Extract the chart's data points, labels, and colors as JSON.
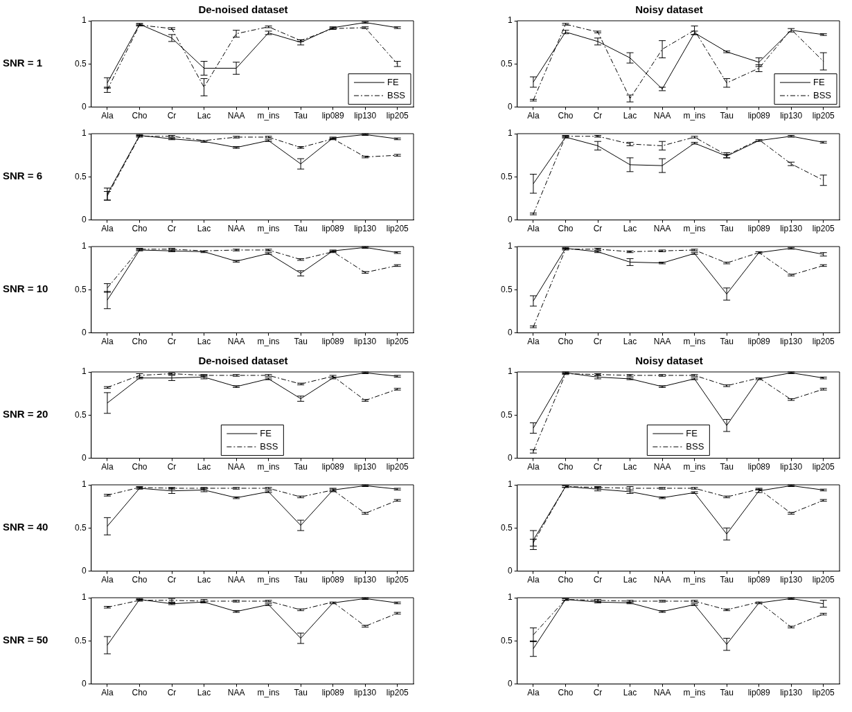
{
  "chart_data": [
    {
      "type": "line",
      "title": "De-noised dataset",
      "ylabel": "SNR = 1",
      "categories": [
        "Ala",
        "Cho",
        "Cr",
        "Lac",
        "NAA",
        "m_ins",
        "Tau",
        "lip089",
        "lip130",
        "lip205"
      ],
      "ylim": [
        0,
        1
      ],
      "yticks": [
        0,
        0.5,
        1
      ],
      "legend": "bottom right",
      "series": [
        {
          "name": "FE",
          "color": "#000000",
          "line_style": "solid",
          "values": [
            0.28,
            0.96,
            0.8,
            0.45,
            0.45,
            0.86,
            0.75,
            0.92,
            0.98,
            0.92
          ],
          "errors": [
            0.06,
            0.01,
            0.04,
            0.08,
            0.07,
            0.02,
            0.03,
            0.01,
            0.01,
            0.01
          ]
        },
        {
          "name": "BSS",
          "color": "#000000",
          "line_style": "dashdot",
          "values": [
            0.2,
            0.95,
            0.91,
            0.23,
            0.85,
            0.93,
            0.77,
            0.91,
            0.92,
            0.5
          ],
          "errors": [
            0.03,
            0.01,
            0.01,
            0.1,
            0.04,
            0.01,
            0.01,
            0.01,
            0.01,
            0.03
          ]
        }
      ]
    },
    {
      "type": "line",
      "title": "Noisy dataset",
      "categories": [
        "Ala",
        "Cho",
        "Cr",
        "Lac",
        "NAA",
        "m_ins",
        "Tau",
        "lip089",
        "lip130",
        "lip205"
      ],
      "ylim": [
        0,
        1
      ],
      "yticks": [
        0,
        0.5,
        1
      ],
      "legend": "bottom right",
      "series": [
        {
          "name": "FE",
          "color": "#000000",
          "line_style": "solid",
          "values": [
            0.29,
            0.87,
            0.76,
            0.57,
            0.21,
            0.86,
            0.64,
            0.52,
            0.89,
            0.84
          ],
          "errors": [
            0.06,
            0.02,
            0.04,
            0.06,
            0.02,
            0.02,
            0.01,
            0.05,
            0.02,
            0.01
          ]
        },
        {
          "name": "BSS",
          "color": "#000000",
          "line_style": "dashdot",
          "values": [
            0.08,
            0.96,
            0.87,
            0.1,
            0.67,
            0.89,
            0.28,
            0.45,
            0.9,
            0.53
          ],
          "errors": [
            0.01,
            0.01,
            0.01,
            0.04,
            0.1,
            0.05,
            0.05,
            0.04,
            null,
            0.1
          ]
        }
      ]
    },
    {
      "type": "line",
      "ylabel": "SNR = 6",
      "categories": [
        "Ala",
        "Cho",
        "Cr",
        "Lac",
        "NAA",
        "m_ins",
        "Tau",
        "lip089",
        "lip130",
        "lip205"
      ],
      "ylim": [
        0,
        1
      ],
      "yticks": [
        0,
        0.5,
        1
      ],
      "series": [
        {
          "color": "#000000",
          "line_style": "solid",
          "values": [
            0.3,
            0.98,
            0.94,
            0.91,
            0.84,
            0.92,
            0.65,
            0.95,
            0.99,
            0.94
          ],
          "errors": [
            0.07,
            0.01,
            0.01,
            0.01,
            0.01,
            0.01,
            0.06,
            0.01,
            0.01,
            0.01
          ]
        },
        {
          "color": "#000000",
          "line_style": "dashdot",
          "values": [
            0.28,
            0.97,
            0.97,
            0.92,
            0.96,
            0.96,
            0.84,
            0.94,
            0.73,
            0.75
          ],
          "errors": [
            0.05,
            0.01,
            0.01,
            null,
            0.01,
            0.01,
            0.01,
            0.01,
            0.01,
            0.01
          ]
        }
      ]
    },
    {
      "type": "line",
      "categories": [
        "Ala",
        "Cho",
        "Cr",
        "Lac",
        "NAA",
        "m_ins",
        "Tau",
        "lip089",
        "lip130",
        "lip205"
      ],
      "ylim": [
        0,
        1
      ],
      "yticks": [
        0,
        0.5,
        1
      ],
      "series": [
        {
          "color": "#000000",
          "line_style": "solid",
          "values": [
            0.42,
            0.96,
            0.86,
            0.64,
            0.63,
            0.89,
            0.74,
            0.92,
            0.97,
            0.9
          ],
          "errors": [
            0.11,
            0.01,
            0.05,
            0.08,
            0.08,
            0.01,
            0.02,
            0.01,
            0.01,
            0.01
          ]
        },
        {
          "color": "#000000",
          "line_style": "dashdot",
          "values": [
            0.07,
            0.97,
            0.97,
            0.88,
            0.86,
            0.96,
            0.75,
            0.93,
            0.65,
            0.46
          ],
          "errors": [
            0.01,
            0.01,
            0.01,
            0.02,
            0.05,
            0.01,
            0.03,
            null,
            0.02,
            0.06
          ]
        }
      ]
    },
    {
      "type": "line",
      "ylabel": "SNR = 10",
      "categories": [
        "Ala",
        "Cho",
        "Cr",
        "Lac",
        "NAA",
        "m_ins",
        "Tau",
        "lip089",
        "lip130",
        "lip205"
      ],
      "ylim": [
        0,
        1
      ],
      "yticks": [
        0,
        0.5,
        1
      ],
      "series": [
        {
          "color": "#000000",
          "line_style": "solid",
          "values": [
            0.38,
            0.96,
            0.95,
            0.94,
            0.83,
            0.92,
            0.69,
            0.95,
            0.99,
            0.93
          ],
          "errors": [
            0.1,
            0.01,
            0.01,
            0.01,
            0.01,
            0.01,
            0.03,
            0.01,
            0.01,
            0.01
          ]
        },
        {
          "color": "#000000",
          "line_style": "dashdot",
          "values": [
            0.52,
            0.97,
            0.97,
            0.95,
            0.96,
            0.96,
            0.85,
            0.94,
            0.7,
            0.78
          ],
          "errors": [
            0.05,
            0.01,
            0.01,
            null,
            0.01,
            0.01,
            0.01,
            0.01,
            0.01,
            0.01
          ]
        }
      ]
    },
    {
      "type": "line",
      "categories": [
        "Ala",
        "Cho",
        "Cr",
        "Lac",
        "NAA",
        "m_ins",
        "Tau",
        "lip089",
        "lip130",
        "lip205"
      ],
      "ylim": [
        0,
        1
      ],
      "yticks": [
        0,
        0.5,
        1
      ],
      "series": [
        {
          "color": "#000000",
          "line_style": "solid",
          "values": [
            0.37,
            0.98,
            0.94,
            0.82,
            0.81,
            0.92,
            0.45,
            0.93,
            0.98,
            0.91
          ],
          "errors": [
            0.06,
            0.01,
            0.01,
            0.04,
            0.01,
            0.01,
            0.07,
            0.01,
            0.01,
            0.02
          ]
        },
        {
          "color": "#000000",
          "line_style": "dashdot",
          "values": [
            0.07,
            0.97,
            0.97,
            0.94,
            0.95,
            0.96,
            0.81,
            0.93,
            0.67,
            0.78
          ],
          "errors": [
            0.01,
            0.01,
            0.01,
            0.01,
            0.01,
            0.01,
            0.01,
            null,
            0.01,
            0.01
          ]
        }
      ]
    },
    {
      "type": "line",
      "title": "De-noised dataset",
      "ylabel": "SNR = 20",
      "categories": [
        "Ala",
        "Cho",
        "Cr",
        "Lac",
        "NAA",
        "m_ins",
        "Tau",
        "lip089",
        "lip130",
        "lip205"
      ],
      "ylim": [
        0,
        1
      ],
      "yticks": [
        0,
        0.5,
        1
      ],
      "legend": "bottom",
      "series": [
        {
          "name": "FE",
          "color": "#000000",
          "line_style": "solid",
          "values": [
            0.64,
            0.93,
            0.93,
            0.94,
            0.83,
            0.92,
            0.69,
            0.93,
            0.99,
            0.95
          ],
          "errors": [
            0.12,
            0.01,
            0.03,
            0.02,
            0.01,
            0.01,
            0.03,
            0.01,
            0.01,
            0.01
          ]
        },
        {
          "name": "BSS",
          "color": "#000000",
          "line_style": "dashdot",
          "values": [
            0.82,
            0.96,
            0.98,
            0.96,
            0.96,
            0.96,
            0.86,
            0.95,
            0.67,
            0.8
          ],
          "errors": [
            0.01,
            0.02,
            0.01,
            0.01,
            0.01,
            0.01,
            0.01,
            0.01,
            0.01,
            0.01
          ]
        }
      ]
    },
    {
      "type": "line",
      "title": "Noisy dataset",
      "categories": [
        "Ala",
        "Cho",
        "Cr",
        "Lac",
        "NAA",
        "m_ins",
        "Tau",
        "lip089",
        "lip130",
        "lip205"
      ],
      "ylim": [
        0,
        1
      ],
      "yticks": [
        0,
        0.5,
        1
      ],
      "legend": "bottom",
      "series": [
        {
          "name": "FE",
          "color": "#000000",
          "line_style": "solid",
          "values": [
            0.35,
            0.99,
            0.94,
            0.92,
            0.83,
            0.92,
            0.38,
            0.92,
            0.99,
            0.93
          ],
          "errors": [
            0.06,
            0.01,
            0.02,
            0.01,
            0.01,
            0.01,
            0.07,
            0.01,
            0.01,
            0.01
          ]
        },
        {
          "name": "BSS",
          "color": "#000000",
          "line_style": "dashdot",
          "values": [
            0.08,
            0.98,
            0.97,
            0.96,
            0.96,
            0.96,
            0.84,
            0.93,
            0.68,
            0.8
          ],
          "errors": [
            0.02,
            0.01,
            0.01,
            0.01,
            0.01,
            0.01,
            0.01,
            null,
            0.01,
            0.01
          ]
        }
      ]
    },
    {
      "type": "line",
      "ylabel": "SNR = 40",
      "categories": [
        "Ala",
        "Cho",
        "Cr",
        "Lac",
        "NAA",
        "m_ins",
        "Tau",
        "lip089",
        "lip130",
        "lip205"
      ],
      "ylim": [
        0,
        1
      ],
      "yticks": [
        0,
        0.5,
        1
      ],
      "series": [
        {
          "color": "#000000",
          "line_style": "solid",
          "values": [
            0.52,
            0.96,
            0.93,
            0.94,
            0.85,
            0.92,
            0.53,
            0.94,
            0.99,
            0.95
          ],
          "errors": [
            0.1,
            0.01,
            0.03,
            0.02,
            0.01,
            0.01,
            0.06,
            0.02,
            0.01,
            0.01
          ]
        },
        {
          "color": "#000000",
          "line_style": "dashdot",
          "values": [
            0.88,
            0.97,
            0.96,
            0.96,
            0.96,
            0.96,
            0.86,
            0.94,
            0.67,
            0.82
          ],
          "errors": [
            0.01,
            0.01,
            0.01,
            0.01,
            0.01,
            0.01,
            0.01,
            0.01,
            0.01,
            0.01
          ]
        }
      ]
    },
    {
      "type": "line",
      "categories": [
        "Ala",
        "Cho",
        "Cr",
        "Lac",
        "NAA",
        "m_ins",
        "Tau",
        "lip089",
        "lip130",
        "lip205"
      ],
      "ylim": [
        0,
        1
      ],
      "yticks": [
        0,
        0.5,
        1
      ],
      "series": [
        {
          "color": "#000000",
          "line_style": "solid",
          "values": [
            0.36,
            0.98,
            0.95,
            0.92,
            0.85,
            0.91,
            0.43,
            0.93,
            0.99,
            0.94
          ],
          "errors": [
            0.11,
            0.01,
            0.02,
            0.02,
            0.01,
            0.01,
            0.07,
            0.02,
            0.01,
            0.01
          ]
        },
        {
          "color": "#000000",
          "line_style": "dashdot",
          "values": [
            0.33,
            0.98,
            0.97,
            0.96,
            0.96,
            0.96,
            0.86,
            0.95,
            0.67,
            0.82
          ],
          "errors": [
            0.04,
            0.01,
            0.01,
            0.02,
            0.01,
            0.01,
            0.01,
            0.01,
            0.01,
            0.01
          ]
        }
      ]
    },
    {
      "type": "line",
      "ylabel": "SNR = 50",
      "categories": [
        "Ala",
        "Cho",
        "Cr",
        "Lac",
        "NAA",
        "m_ins",
        "Tau",
        "lip089",
        "lip130",
        "lip205"
      ],
      "ylim": [
        0,
        1
      ],
      "yticks": [
        0,
        0.5,
        1
      ],
      "series": [
        {
          "color": "#000000",
          "line_style": "solid",
          "values": [
            0.45,
            0.98,
            0.93,
            0.95,
            0.84,
            0.92,
            0.53,
            0.94,
            0.99,
            0.94
          ],
          "errors": [
            0.1,
            0.01,
            0.01,
            0.01,
            0.01,
            0.01,
            0.06,
            0.01,
            0.01,
            0.01
          ]
        },
        {
          "color": "#000000",
          "line_style": "dashdot",
          "values": [
            0.89,
            0.97,
            0.97,
            0.96,
            0.96,
            0.96,
            0.86,
            0.95,
            0.67,
            0.82
          ],
          "errors": [
            0.01,
            0.01,
            0.02,
            0.02,
            0.01,
            0.01,
            0.01,
            null,
            0.01,
            0.01
          ]
        }
      ]
    },
    {
      "type": "line",
      "categories": [
        "Ala",
        "Cho",
        "Cr",
        "Lac",
        "NAA",
        "m_ins",
        "Tau",
        "lip089",
        "lip130",
        "lip205"
      ],
      "ylim": [
        0,
        1
      ],
      "yticks": [
        0,
        0.5,
        1
      ],
      "series": [
        {
          "color": "#000000",
          "line_style": "solid",
          "values": [
            0.41,
            0.98,
            0.95,
            0.94,
            0.84,
            0.92,
            0.46,
            0.94,
            0.99,
            0.93
          ],
          "errors": [
            0.09,
            0.01,
            0.01,
            0.01,
            0.01,
            0.01,
            0.07,
            0.01,
            0.01,
            0.04
          ]
        },
        {
          "color": "#000000",
          "line_style": "dashdot",
          "values": [
            0.57,
            0.98,
            0.97,
            0.96,
            0.96,
            0.96,
            0.86,
            0.95,
            0.66,
            0.81
          ],
          "errors": [
            0.08,
            0.01,
            0.01,
            0.01,
            0.01,
            0.01,
            0.01,
            null,
            0.01,
            0.01
          ]
        }
      ]
    }
  ]
}
